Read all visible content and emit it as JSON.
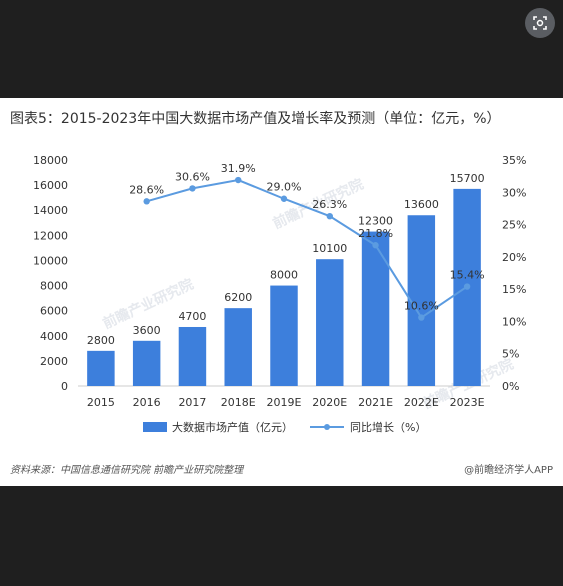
{
  "viewer": {
    "lens_icon": "lens-search-icon"
  },
  "title": "图表5：2015-2023年中国大数据市场产值及增长率及预测（单位：亿元，%）",
  "footer": {
    "source": "资料来源：中国信息通信研究院 前瞻产业研究院整理",
    "brand": "@前瞻经济学人APP"
  },
  "watermark": "前瞻产业研究院",
  "colors": {
    "bar": "#3d7fdc",
    "line": "#5b9be0",
    "axis": "#cccccc",
    "text": "#333333"
  },
  "chart_data": {
    "type": "bar",
    "categories": [
      "2015",
      "2016",
      "2017",
      "2018E",
      "2019E",
      "2020E",
      "2021E",
      "2022E",
      "2023E"
    ],
    "series": [
      {
        "name": "大数据市场产值（亿元）",
        "type": "bar",
        "axis": "left",
        "values": [
          2800,
          3600,
          4700,
          6200,
          8000,
          10100,
          12300,
          13600,
          15700
        ],
        "labels": [
          "2800",
          "3600",
          "4700",
          "6200",
          "8000",
          "10100",
          "12300",
          "13600",
          "15700"
        ]
      },
      {
        "name": "同比增长（%）",
        "type": "line",
        "axis": "right",
        "values": [
          null,
          28.6,
          30.6,
          31.9,
          29.0,
          26.3,
          21.8,
          10.6,
          15.4
        ],
        "labels": [
          "",
          "28.6%",
          "30.6%",
          "31.9%",
          "29.0%",
          "26.3%",
          "21.8%",
          "10.6%",
          "15.4%"
        ]
      }
    ],
    "y_left": {
      "lim": [
        0,
        18000
      ],
      "ticks": [
        "0",
        "2000",
        "4000",
        "6000",
        "8000",
        "10000",
        "12000",
        "14000",
        "16000",
        "18000"
      ]
    },
    "y_right": {
      "lim": [
        0,
        35
      ],
      "ticks": [
        "0%",
        "5%",
        "10%",
        "15%",
        "20%",
        "25%",
        "30%",
        "35%"
      ]
    },
    "legend_position": "bottom",
    "grid": false
  }
}
